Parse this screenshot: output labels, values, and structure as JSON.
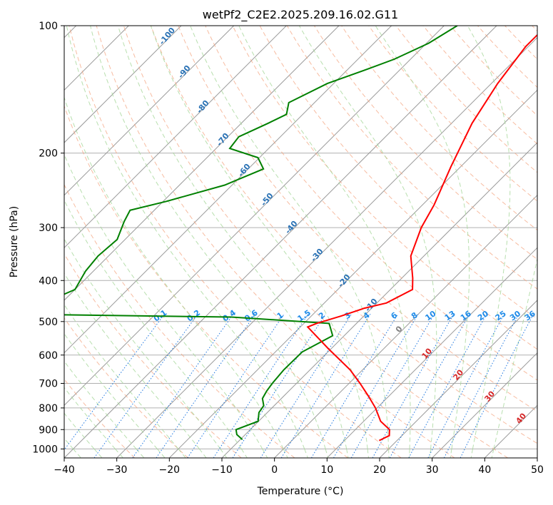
{
  "chart_data": {
    "type": "line",
    "subtype": "skew-t log-p diagram",
    "title": "wetPf2_C2E2.2025.209.16.02.G11",
    "xlabel": "Temperature (°C)",
    "ylabel": "Pressure (hPa)",
    "xlim": [
      -40,
      50
    ],
    "ylim": [
      1050,
      100
    ],
    "y_scale": "log",
    "x_ticks": [
      -40,
      -30,
      -20,
      -10,
      0,
      10,
      20,
      30,
      40,
      50
    ],
    "y_ticks": [
      100,
      200,
      300,
      400,
      500,
      600,
      700,
      800,
      900,
      1000
    ],
    "grid": true,
    "series": [
      {
        "role": "temperature",
        "color": "#ff0000",
        "points": [
          [
            -30.5,
            100
          ],
          [
            -30.5,
            112
          ],
          [
            -28.8,
            137
          ],
          [
            -26.1,
            170
          ],
          [
            -21.9,
            215
          ],
          [
            -17.8,
            265
          ],
          [
            -15.9,
            300
          ],
          [
            -12.5,
            350
          ],
          [
            -7.9,
            395
          ],
          [
            -5.8,
            420
          ],
          [
            -8.2,
            452
          ],
          [
            -11.4,
            465
          ],
          [
            -14.3,
            485
          ],
          [
            -17.6,
            505
          ],
          [
            -18.6,
            515
          ],
          [
            -10.5,
            580
          ],
          [
            -2.4,
            650
          ],
          [
            2.1,
            700
          ],
          [
            6.1,
            750
          ],
          [
            9.7,
            800
          ],
          [
            13.2,
            860
          ],
          [
            16.5,
            900
          ],
          [
            17.6,
            930
          ],
          [
            16.6,
            955
          ]
        ]
      },
      {
        "role": "dewpoint",
        "color": "#008000",
        "points": [
          [
            -47.5,
            100
          ],
          [
            -49.6,
            110
          ],
          [
            -53.1,
            120
          ],
          [
            -56.0,
            126
          ],
          [
            -61.2,
            137
          ],
          [
            -64.9,
            152
          ],
          [
            -63.1,
            162
          ],
          [
            -64.9,
            170
          ],
          [
            -67.9,
            183
          ],
          [
            -67.4,
            195
          ],
          [
            -60.3,
            205
          ],
          [
            -57.1,
            218
          ],
          [
            -61.4,
            238
          ],
          [
            -69.4,
            260
          ],
          [
            -74.6,
            273
          ],
          [
            -73.6,
            290
          ],
          [
            -71.5,
            320
          ],
          [
            -72.0,
            350
          ],
          [
            -71.5,
            380
          ],
          [
            -70.0,
            420
          ],
          [
            -71.6,
            435
          ],
          [
            -112.0,
            452
          ],
          [
            -111.0,
            467
          ],
          [
            -79.0,
            480
          ],
          [
            -35.0,
            488
          ],
          [
            -15.2,
            505
          ],
          [
            -12.2,
            540
          ],
          [
            -14.9,
            590
          ],
          [
            -15.0,
            650
          ],
          [
            -14.6,
            700
          ],
          [
            -14.2,
            730
          ],
          [
            -13.6,
            760
          ],
          [
            -12.0,
            790
          ],
          [
            -11.6,
            820
          ],
          [
            -10.1,
            860
          ],
          [
            -12.7,
            900
          ],
          [
            -11.6,
            925
          ],
          [
            -9.6,
            950
          ]
        ]
      }
    ],
    "dry_adiabat_labels": [
      "-100",
      "-90",
      "-80",
      "-70",
      "-60",
      "-50",
      "-40",
      "-30",
      "-20",
      "-10",
      "0",
      "10",
      "20",
      "30",
      "40"
    ],
    "mixing_ratio_labels": [
      "0.1",
      "0.2",
      "0.4",
      "0.6",
      "1",
      "1.5",
      "2",
      "3",
      "4",
      "6",
      "8",
      "10",
      "13",
      "16",
      "20",
      "25",
      "30",
      "36"
    ],
    "mixing_ratio_values": [
      0.1,
      0.2,
      0.4,
      0.6,
      1,
      1.5,
      2,
      3,
      4,
      6,
      8,
      10,
      13,
      16,
      20,
      25,
      30,
      36
    ],
    "colors": {
      "temperature": "#ff0000",
      "dewpoint": "#008000",
      "dry_adiabat": "#f4a582",
      "moist_adiabat": "#a6d79a",
      "mixing_ratio": "#1f77e0",
      "isotherm": "#9a9a9a",
      "isobar": "#b0b0b0"
    }
  }
}
